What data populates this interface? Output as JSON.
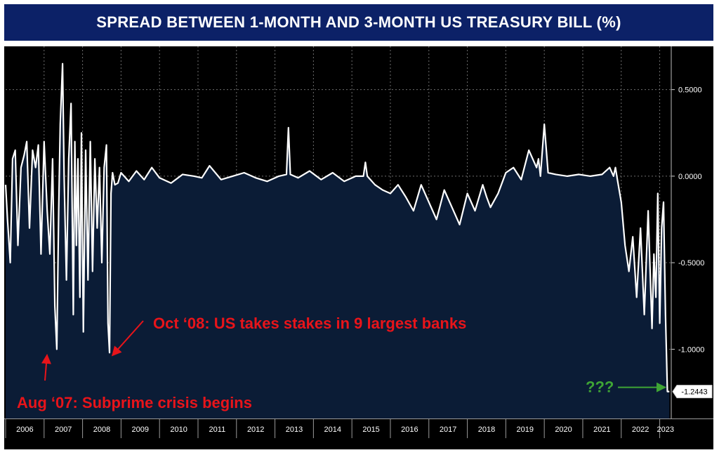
{
  "header": {
    "title": "SPREAD BETWEEN 1-MONTH AND 3-MONTH US TREASURY BILL (%)"
  },
  "colors": {
    "title_bg": "#0c2167",
    "chart_bg": "#000000",
    "area_fill": "#0b1c36",
    "line": "#ffffff",
    "annotation_red": "#e8141a",
    "annotation_green": "#3fa535"
  },
  "chart_data": {
    "type": "area",
    "title": "SPREAD BETWEEN 1-MONTH AND 3-MONTH US TREASURY BILL (%)",
    "xlabel": "",
    "ylabel": "",
    "xlim": [
      2006.0,
      2023.3
    ],
    "ylim": [
      -1.4,
      0.75
    ],
    "grid": true,
    "legend": "none",
    "x_ticks": [
      "2006",
      "2007",
      "2008",
      "2009",
      "2010",
      "2011",
      "2012",
      "2013",
      "2014",
      "2015",
      "2016",
      "2017",
      "2018",
      "2019",
      "2020",
      "2021",
      "2022",
      "2023"
    ],
    "y_ticks": [
      {
        "value": 0.5,
        "label": "0.5000"
      },
      {
        "value": 0.0,
        "label": "0.0000"
      },
      {
        "value": -0.5,
        "label": "-0.5000"
      },
      {
        "value": -1.0,
        "label": "-1.0000"
      }
    ],
    "last_value": {
      "value": -1.2443,
      "label": "-1.2443"
    },
    "series": [
      {
        "x": [
          2006.0,
          2006.05,
          2006.12,
          2006.18,
          2006.25,
          2006.32,
          2006.4,
          2006.48,
          2006.55,
          2006.62,
          2006.7,
          2006.78,
          2006.85,
          2006.92,
          2007.0,
          2007.08,
          2007.15,
          2007.22,
          2007.28,
          2007.33,
          2007.38,
          2007.42,
          2007.48,
          2007.52,
          2007.58,
          2007.64,
          2007.7,
          2007.76,
          2007.8,
          2007.84,
          2007.88,
          2007.93,
          2007.97,
          2008.02,
          2008.08,
          2008.14,
          2008.2,
          2008.26,
          2008.32,
          2008.38,
          2008.44,
          2008.5,
          2008.56,
          2008.62,
          2008.66,
          2008.7,
          2008.74,
          2008.78,
          2008.84,
          2008.92,
          2009.0,
          2009.2,
          2009.4,
          2009.6,
          2009.8,
          2010.0,
          2010.3,
          2010.6,
          2010.9,
          2011.1,
          2011.3,
          2011.6,
          2011.9,
          2012.2,
          2012.5,
          2012.8,
          2013.1,
          2013.3,
          2013.35,
          2013.4,
          2013.6,
          2013.9,
          2014.2,
          2014.5,
          2014.8,
          2015.1,
          2015.3,
          2015.35,
          2015.4,
          2015.6,
          2015.8,
          2016.0,
          2016.2,
          2016.4,
          2016.6,
          2016.8,
          2017.0,
          2017.2,
          2017.4,
          2017.6,
          2017.8,
          2018.0,
          2018.2,
          2018.4,
          2018.5,
          2018.6,
          2018.8,
          2019.0,
          2019.2,
          2019.4,
          2019.6,
          2019.8,
          2019.85,
          2019.9,
          2020.0,
          2020.1,
          2020.3,
          2020.6,
          2020.9,
          2021.2,
          2021.5,
          2021.7,
          2021.8,
          2021.85,
          2021.9,
          2022.0,
          2022.1,
          2022.2,
          2022.3,
          2022.4,
          2022.5,
          2022.6,
          2022.7,
          2022.8,
          2022.85,
          2022.9,
          2022.95,
          2023.0,
          2023.05,
          2023.1,
          2023.15,
          2023.2,
          2023.25
        ],
        "values": [
          -0.05,
          -0.25,
          -0.5,
          0.1,
          0.15,
          -0.4,
          0.05,
          0.12,
          0.2,
          -0.3,
          0.15,
          0.05,
          0.18,
          -0.45,
          0.2,
          -0.2,
          -0.45,
          0.1,
          -0.75,
          -1.0,
          -0.2,
          0.3,
          0.65,
          0.0,
          -0.6,
          0.1,
          0.42,
          -0.8,
          0.2,
          -0.4,
          0.1,
          -0.7,
          0.25,
          -0.9,
          0.15,
          -0.6,
          0.2,
          -0.55,
          0.1,
          -0.3,
          0.05,
          -0.5,
          0.05,
          0.18,
          -0.85,
          -1.02,
          -0.1,
          0.02,
          -0.05,
          -0.04,
          0.02,
          -0.03,
          0.03,
          -0.02,
          0.05,
          -0.01,
          -0.04,
          0.01,
          0.0,
          -0.01,
          0.06,
          -0.02,
          0.0,
          0.02,
          -0.01,
          -0.03,
          0.0,
          0.01,
          0.28,
          0.01,
          -0.01,
          0.03,
          -0.02,
          0.02,
          -0.03,
          0.0,
          0.0,
          0.08,
          0.0,
          -0.05,
          -0.08,
          -0.1,
          -0.05,
          -0.12,
          -0.2,
          -0.05,
          -0.15,
          -0.25,
          -0.08,
          -0.18,
          -0.28,
          -0.1,
          -0.2,
          -0.05,
          -0.12,
          -0.18,
          -0.1,
          0.02,
          0.05,
          -0.02,
          0.15,
          0.05,
          0.1,
          0.0,
          0.3,
          0.02,
          0.01,
          0.0,
          0.01,
          0.0,
          0.01,
          0.05,
          0.0,
          0.05,
          -0.02,
          -0.15,
          -0.4,
          -0.55,
          -0.35,
          -0.7,
          -0.3,
          -0.8,
          -0.2,
          -0.88,
          -0.45,
          -0.7,
          -0.1,
          -0.85,
          -0.3,
          -0.15,
          -0.8,
          -1.2443,
          -1.2443
        ]
      }
    ],
    "annotations": [
      {
        "text": "Oct ‘08: US takes stakes in 9 largest banks",
        "x": 2008.7,
        "y": -1.02,
        "color": "red"
      },
      {
        "text": "Aug ‘07: Subprime crisis begins",
        "x": 2007.15,
        "y": -1.0,
        "color": "red"
      },
      {
        "text": "???",
        "x": 2023.22,
        "y": -1.2443,
        "color": "green"
      }
    ]
  }
}
